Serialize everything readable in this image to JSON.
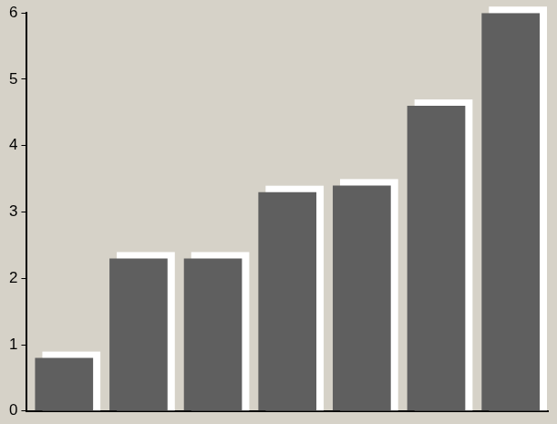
{
  "chart_data": {
    "type": "bar",
    "categories": [
      null,
      null,
      null,
      null,
      null,
      null,
      null
    ],
    "values": [
      0.8,
      2.3,
      2.3,
      3.3,
      3.4,
      4.6,
      6.0
    ],
    "color": "#5f5f5f",
    "ylim": [
      0,
      6
    ],
    "yticks": [
      0,
      1,
      2,
      3,
      4,
      5,
      6
    ],
    "grid": false,
    "tick_labels": "y"
  }
}
